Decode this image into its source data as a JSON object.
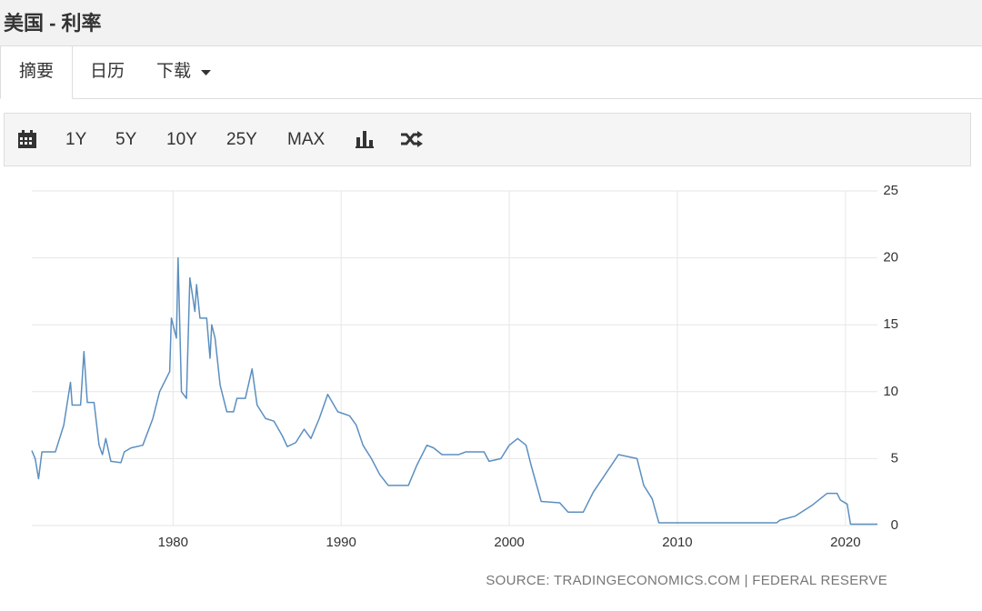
{
  "header": {
    "title": "美国 - 利率"
  },
  "tabs": [
    "摘要",
    "日历",
    "下载"
  ],
  "toolbar": [
    "1Y",
    "5Y",
    "10Y",
    "25Y",
    "MAX"
  ],
  "chart_data": {
    "type": "line",
    "source": "SOURCE: TRADINGECONOMICS.COM | FEDERAL RESERVE",
    "x": [
      1971.6,
      1971.8,
      1972.0,
      1972.2,
      1973.0,
      1973.5,
      1973.9,
      1974.0,
      1974.5,
      1974.7,
      1974.9,
      1975.3,
      1975.6,
      1975.8,
      1976.0,
      1976.3,
      1976.9,
      1977.1,
      1977.5,
      1978.2,
      1978.8,
      1979.2,
      1979.8,
      1979.9,
      1980.2,
      1980.3,
      1980.5,
      1980.8,
      1981.0,
      1981.3,
      1981.4,
      1981.6,
      1982.0,
      1982.2,
      1982.3,
      1982.5,
      1982.8,
      1983.2,
      1983.6,
      1983.8,
      1984.3,
      1984.7,
      1985.0,
      1985.5,
      1986.0,
      1986.5,
      1986.8,
      1987.3,
      1987.8,
      1988.2,
      1988.7,
      1989.2,
      1989.8,
      1990.5,
      1990.9,
      1991.3,
      1991.8,
      1992.3,
      1992.8,
      1993.5,
      1994.0,
      1994.5,
      1995.1,
      1995.5,
      1996.0,
      1997.0,
      1997.4,
      1998.5,
      1998.8,
      1999.5,
      2000.0,
      2000.5,
      2001.0,
      2001.3,
      2001.9,
      2003.0,
      2003.5,
      2004.4,
      2005.0,
      2006.5,
      2007.6,
      2008.0,
      2008.5,
      2008.9,
      2015.9,
      2016.1,
      2017.0,
      2018.0,
      2018.9,
      2019.5,
      2019.7,
      2020.1,
      2020.3,
      2021.9
    ],
    "series": [
      {
        "color": "#5b8fc0",
        "values": [
          5.6,
          5.0,
          3.5,
          5.5,
          5.5,
          7.5,
          10.7,
          9.0,
          9.0,
          13.0,
          9.2,
          9.2,
          6.0,
          5.3,
          6.5,
          4.8,
          4.7,
          5.5,
          5.8,
          6.0,
          8.0,
          10.0,
          11.5,
          15.5,
          14.0,
          20.0,
          10.0,
          9.5,
          18.5,
          16.0,
          18.0,
          15.5,
          15.5,
          12.5,
          15.0,
          14.0,
          10.5,
          8.5,
          8.5,
          9.5,
          9.5,
          11.7,
          9.0,
          8.0,
          7.8,
          6.7,
          5.9,
          6.2,
          7.2,
          6.5,
          8.0,
          9.8,
          8.5,
          8.2,
          7.5,
          6.0,
          5.0,
          3.8,
          3.0,
          3.0,
          3.0,
          4.5,
          6.0,
          5.8,
          5.3,
          5.3,
          5.5,
          5.5,
          4.8,
          5.0,
          6.0,
          6.5,
          6.0,
          4.5,
          1.8,
          1.7,
          1.0,
          1.0,
          2.5,
          5.3,
          5.0,
          3.0,
          2.0,
          0.2,
          0.2,
          0.4,
          0.7,
          1.5,
          2.4,
          2.4,
          1.9,
          1.6,
          0.1,
          0.1
        ]
      }
    ],
    "xlim": [
      1971.6,
      2021.9
    ],
    "xticks": [
      1980,
      1990,
      2000,
      2010,
      2020
    ],
    "ylim": [
      0,
      25
    ],
    "yticks": [
      0,
      5,
      10,
      15,
      20,
      25
    ],
    "grid": true
  }
}
